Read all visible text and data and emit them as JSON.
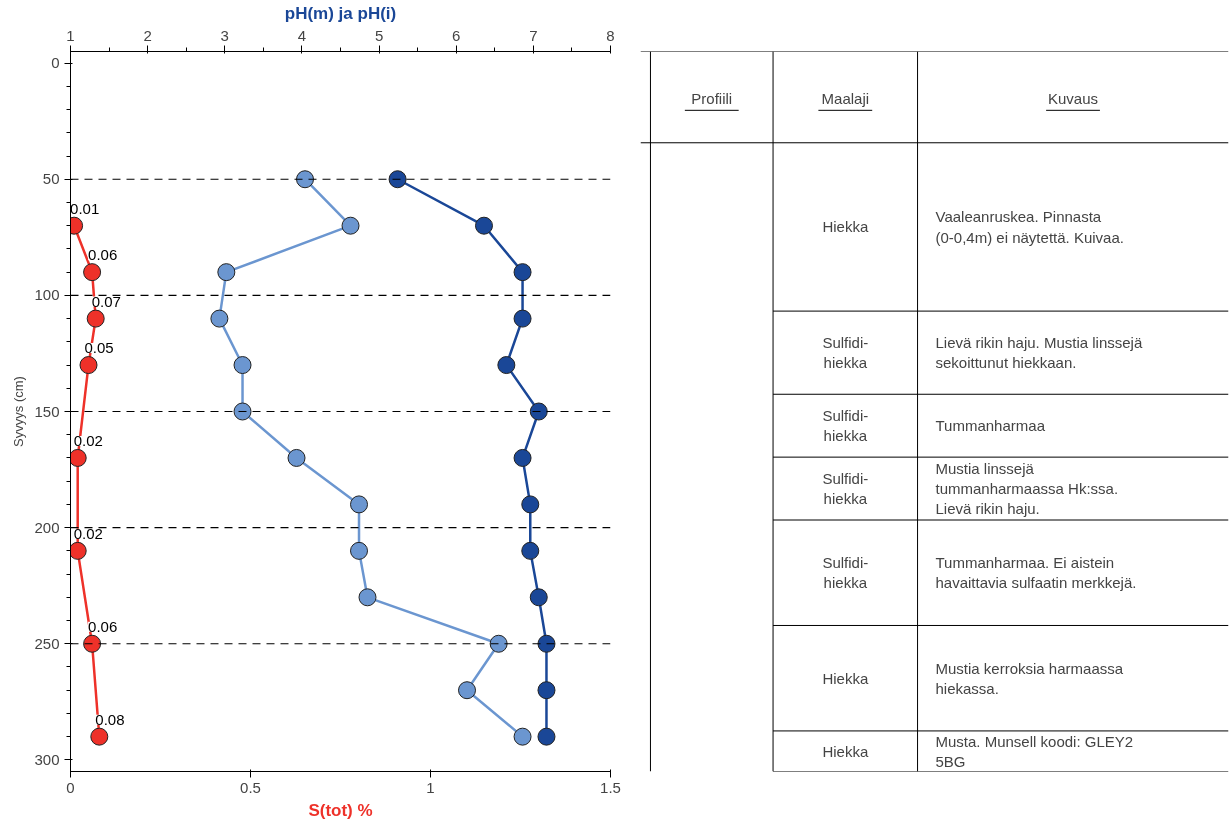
{
  "chart_data": [
    {
      "type": "line",
      "orientation": "horizontal",
      "x2label": "pH(m) ja pH(i)",
      "xlabel": "S(tot) %",
      "ylabel": "Syvyys (cm)",
      "xlim": [
        0,
        1.5
      ],
      "xticks": [
        0,
        0.5,
        1,
        1.5
      ],
      "x2lim": [
        1,
        8
      ],
      "x2ticks": [
        1,
        2,
        3,
        4,
        5,
        6,
        7,
        8
      ],
      "ylim": [
        305,
        -5
      ],
      "yticks": [
        0,
        50,
        100,
        150,
        200,
        250,
        300
      ],
      "marker": "circle",
      "grid": false,
      "ref_lines": [
        {
          "axis": "y",
          "value": 50,
          "line_style": "dashed"
        },
        {
          "axis": "y",
          "value": 100,
          "line_style": "dashed"
        },
        {
          "axis": "y",
          "value": 150,
          "line_style": "dashed"
        },
        {
          "axis": "y",
          "value": 200,
          "line_style": "dashed"
        },
        {
          "axis": "y",
          "value": 250,
          "line_style": "dashed"
        }
      ],
      "series": [
        {
          "color": "#1a4797",
          "axis": "x2",
          "x": [
            50,
            70,
            90,
            110,
            130,
            150,
            170,
            190,
            210,
            230,
            250,
            270,
            290
          ],
          "values": [
            5.24,
            6.36,
            6.86,
            6.86,
            6.65,
            7.07,
            6.86,
            6.96,
            6.96,
            7.07,
            7.17,
            7.17,
            7.17
          ]
        },
        {
          "color": "#6b96d0",
          "axis": "x2",
          "x": [
            50,
            70,
            90,
            110,
            130,
            150,
            170,
            190,
            210,
            230,
            250,
            270,
            290
          ],
          "values": [
            4.04,
            4.63,
            3.02,
            2.93,
            3.23,
            3.23,
            3.93,
            4.74,
            4.74,
            4.85,
            6.55,
            6.14,
            6.86
          ]
        },
        {
          "color": "#ee3129",
          "data_labels": true,
          "x": [
            70,
            90,
            110,
            130,
            170,
            210,
            250,
            290
          ],
          "values": [
            0.01,
            0.06,
            0.07,
            0.05,
            0.02,
            0.02,
            0.06,
            0.08
          ]
        }
      ]
    },
    {
      "type": "other",
      "categories": [
        "Profiili",
        "Maalaji",
        "Kuvaus"
      ],
      "y_categories": [
        "Hiekka",
        "Sulfidi-\nhiekka",
        "Sulfidi-\nhiekka",
        "Sulfidi-\nhiekka",
        "Sulfidi-\nhiekka",
        "Hiekka",
        "Hiekka"
      ],
      "y2_categories": [
        "Vaaleanruskea. Pinnasta\n(0-0,4m) ei näytettä. Kuivaa.",
        "Lievä rikin haju. Mustia linssejä\nsekoittunut hiekkaan.",
        "Tummanharmaa",
        "Mustia linssejä\ntummanharmaassa Hk:ssa.\nLievä rikin haju.",
        "Tummanharmaa. Ei aistein\nhavaittavia sulfaatin merkkejä.",
        "Mustia kerroksia harmaassa\nhiekassa.",
        "Musta. Munsell koodi: GLEY2\n5BG"
      ]
    }
  ]
}
